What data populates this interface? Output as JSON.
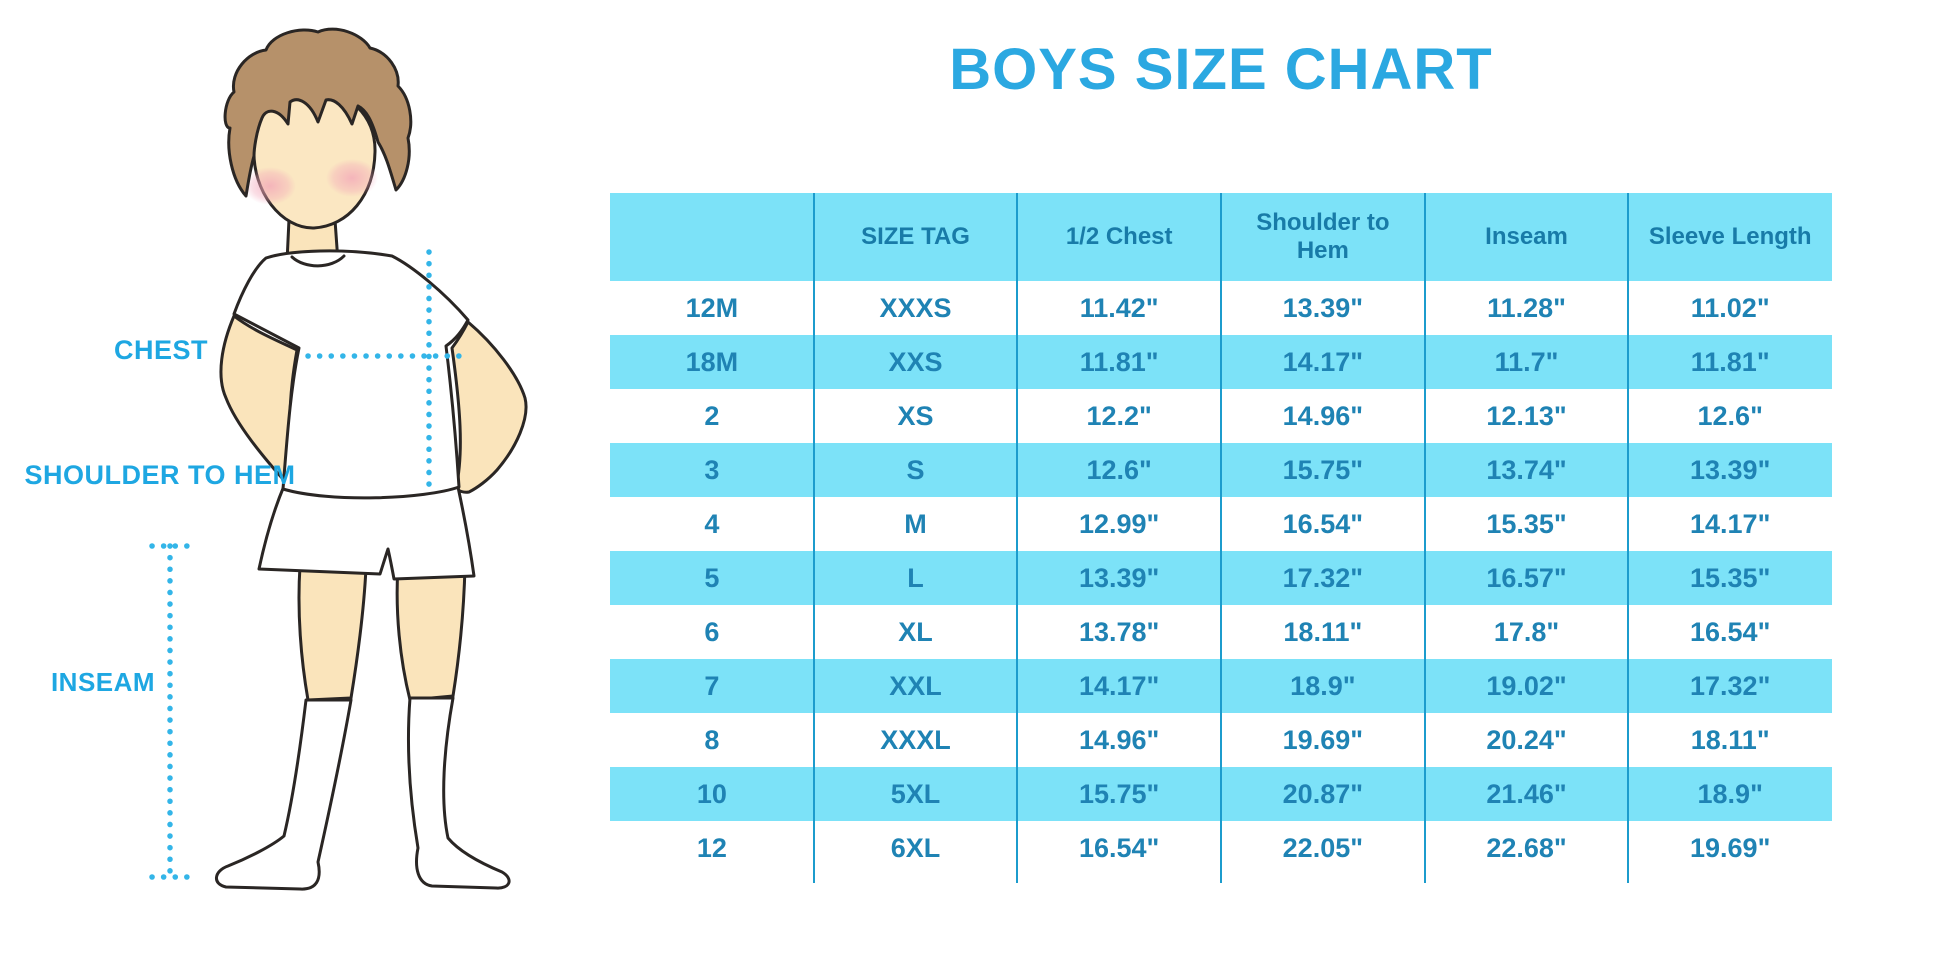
{
  "chart_data": {
    "type": "table",
    "title": "BOYS SIZE CHART",
    "columns": [
      "",
      "SIZE TAG",
      "1/2 Chest",
      "Shoulder to Hem",
      "Inseam",
      "Sleeve Length"
    ],
    "rows": [
      [
        "12M",
        "XXXS",
        "11.42\"",
        "13.39\"",
        "11.28\"",
        "11.02\""
      ],
      [
        "18M",
        "XXS",
        "11.81\"",
        "14.17\"",
        "11.7\"",
        "11.81\""
      ],
      [
        "2",
        "XS",
        "12.2\"",
        "14.96\"",
        "12.13\"",
        "12.6\""
      ],
      [
        "3",
        "S",
        "12.6\"",
        "15.75\"",
        "13.74\"",
        "13.39\""
      ],
      [
        "4",
        "M",
        "12.99\"",
        "16.54\"",
        "15.35\"",
        "14.17\""
      ],
      [
        "5",
        "L",
        "13.39\"",
        "17.32\"",
        "16.57\"",
        "15.35\""
      ],
      [
        "6",
        "XL",
        "13.78\"",
        "18.11\"",
        "17.8\"",
        "16.54\""
      ],
      [
        "7",
        "XXL",
        "14.17\"",
        "18.9\"",
        "19.02\"",
        "17.32\""
      ],
      [
        "8",
        "XXXL",
        "14.96\"",
        "19.69\"",
        "20.24\"",
        "18.11\""
      ],
      [
        "10",
        "5XL",
        "15.75\"",
        "20.87\"",
        "21.46\"",
        "18.9\""
      ],
      [
        "12",
        "6XL",
        "16.54\"",
        "22.05\"",
        "22.68\"",
        "19.69\""
      ]
    ],
    "layout": {
      "alternating_row_colors": true,
      "units": "inches"
    }
  },
  "illustration": {
    "chest_label": "CHEST",
    "shoulder_to_hem_label": "SHOULDER TO HEM",
    "inseam_label": "INSEAM"
  },
  "colors": {
    "title_blue": "#2ba8e1",
    "header_row_bg": "#7ce2f8",
    "alt_row_bg": "#7ce2f8",
    "header_text": "#187ba8",
    "cell_text": "#1f83b4",
    "column_divider": "#1c9ccd",
    "measure_label_blue": "#1ea7e2",
    "dotted_line_blue": "#33b5e8",
    "skin": "#fae4bb",
    "hair_brown": "#b6916a"
  }
}
